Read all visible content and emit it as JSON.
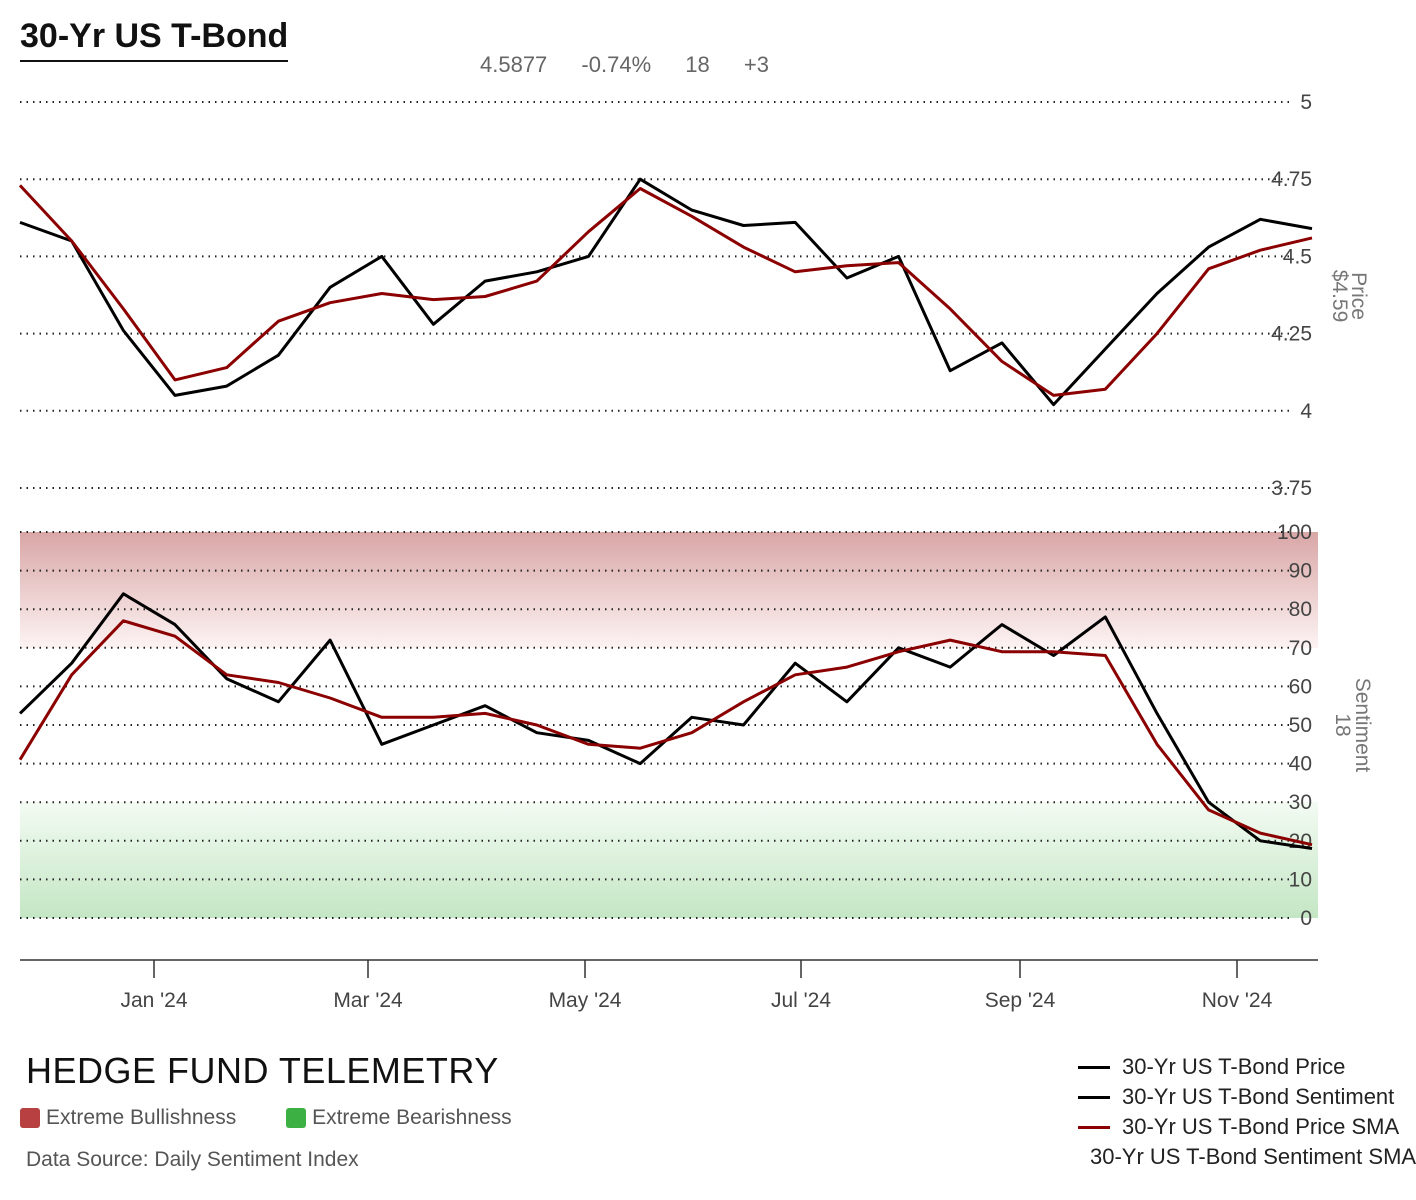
{
  "header": {
    "title": "30-Yr US T-Bond",
    "price": "4.5877",
    "change": "-0.74%",
    "sentiment": "18",
    "sentiment_change": "+3"
  },
  "footer": {
    "brand": "HEDGE FUND TELEMETRY",
    "bull_label": "Extreme Bullishness",
    "bear_label": "Extreme Bearishness",
    "source": "Data Source: Daily Sentiment Index"
  },
  "colors": {
    "price": "#000000",
    "sma": "#8b0000",
    "bull_zone": "#b94040",
    "bear_zone": "#3cb043"
  },
  "legend": [
    {
      "label": "30-Yr US T-Bond Price",
      "color": "#000000"
    },
    {
      "label": "30-Yr US T-Bond Sentiment",
      "color": "#000000"
    },
    {
      "label": "30-Yr US T-Bond Price SMA",
      "color": "#8b0000"
    },
    {
      "label": "30-Yr US T-Bond Sentiment SMA",
      "color": "#8b0000"
    }
  ],
  "chart_data": [
    {
      "type": "line",
      "panel": "price",
      "axis_title": "Price",
      "axis_value": "$4.59",
      "ylim": [
        3.75,
        5
      ],
      "y_ticks": [
        "5",
        "4.75",
        "4.5",
        "4.25",
        "4",
        "3.75"
      ],
      "x_ticks": [
        "Jan '24",
        "Mar '24",
        "May '24",
        "Jul '24",
        "Sep '24",
        "Nov '24"
      ],
      "x": [
        "Nov '23",
        "Dec '23",
        "Dec '23",
        "Jan '24",
        "Jan '24",
        "Feb '24",
        "Feb '24",
        "Mar '24",
        "Mar '24",
        "Apr '24",
        "Apr '24",
        "May '24",
        "May '24",
        "Jun '24",
        "Jun '24",
        "Jul '24",
        "Jul '24",
        "Aug '24",
        "Aug '24",
        "Sep '24",
        "Sep '24",
        "Oct '24",
        "Oct '24",
        "Nov '24",
        "Nov '24",
        "Dec '24"
      ],
      "series": [
        {
          "name": "30-Yr US T-Bond Price",
          "color": "#000000",
          "values": [
            4.61,
            4.55,
            4.26,
            4.05,
            4.08,
            4.18,
            4.4,
            4.5,
            4.28,
            4.42,
            4.45,
            4.5,
            4.75,
            4.65,
            4.6,
            4.61,
            4.43,
            4.5,
            4.13,
            4.22,
            4.02,
            4.2,
            4.38,
            4.53,
            4.62,
            4.59
          ]
        },
        {
          "name": "30-Yr US T-Bond Price SMA",
          "color": "#8b0000",
          "values": [
            4.73,
            4.55,
            4.33,
            4.1,
            4.14,
            4.29,
            4.35,
            4.38,
            4.36,
            4.37,
            4.42,
            4.58,
            4.72,
            4.63,
            4.53,
            4.45,
            4.47,
            4.48,
            4.33,
            4.16,
            4.05,
            4.07,
            4.25,
            4.46,
            4.52,
            4.56
          ]
        }
      ]
    },
    {
      "type": "line",
      "panel": "sentiment",
      "axis_title": "Sentiment",
      "axis_value": "18",
      "ylim": [
        0,
        100
      ],
      "y_ticks": [
        "100",
        "90",
        "80",
        "70",
        "60",
        "50",
        "40",
        "30",
        "20",
        "10",
        "0"
      ],
      "bands": [
        {
          "label": "Extreme Bullishness",
          "range": [
            70,
            100
          ]
        },
        {
          "label": "Extreme Bearishness",
          "range": [
            0,
            30
          ]
        }
      ],
      "x": [
        "Nov '23",
        "Dec '23",
        "Dec '23",
        "Jan '24",
        "Jan '24",
        "Feb '24",
        "Feb '24",
        "Mar '24",
        "Mar '24",
        "Apr '24",
        "Apr '24",
        "May '24",
        "May '24",
        "Jun '24",
        "Jun '24",
        "Jul '24",
        "Jul '24",
        "Aug '24",
        "Aug '24",
        "Sep '24",
        "Sep '24",
        "Oct '24",
        "Oct '24",
        "Nov '24",
        "Nov '24",
        "Dec '24"
      ],
      "series": [
        {
          "name": "30-Yr US T-Bond Sentiment",
          "color": "#000000",
          "values": [
            53,
            66,
            84,
            76,
            62,
            56,
            72,
            45,
            50,
            55,
            48,
            46,
            40,
            52,
            50,
            66,
            56,
            70,
            65,
            76,
            68,
            78,
            53,
            30,
            20,
            18
          ]
        },
        {
          "name": "30-Yr US T-Bond Sentiment SMA",
          "color": "#8b0000",
          "values": [
            41,
            63,
            77,
            73,
            63,
            61,
            57,
            52,
            52,
            53,
            50,
            45,
            44,
            48,
            56,
            63,
            65,
            69,
            72,
            69,
            69,
            68,
            45,
            28,
            22,
            19
          ]
        }
      ]
    }
  ]
}
